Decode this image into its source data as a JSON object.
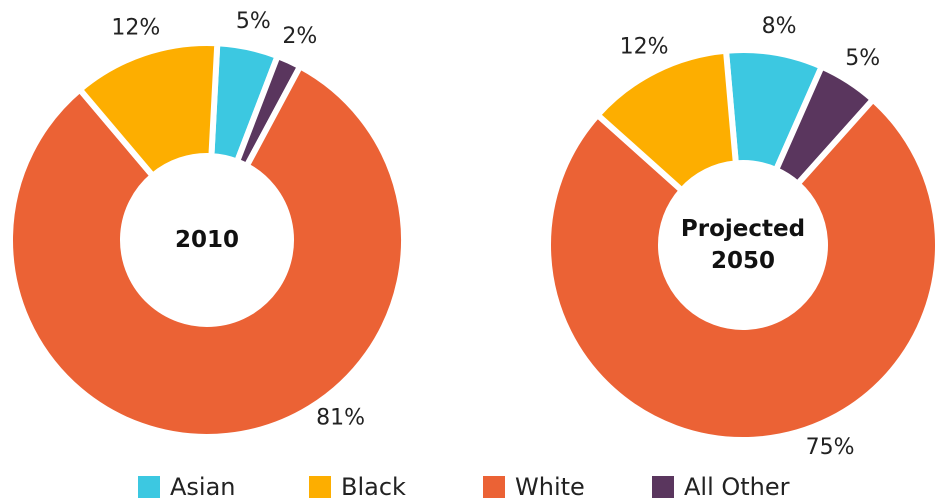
{
  "chart_data": [
    {
      "type": "pie",
      "donut": true,
      "title": "2010",
      "categories": [
        "Asian",
        "Black",
        "White",
        "All Other"
      ],
      "values": [
        5,
        12,
        81,
        2
      ],
      "value_labels": [
        "5%",
        "12%",
        "81%",
        "2%"
      ],
      "colors": [
        "#3cc8e1",
        "#fdae00",
        "#eb6235",
        "#5a365e"
      ]
    },
    {
      "type": "pie",
      "donut": true,
      "title": "Projected 2050",
      "categories": [
        "Asian",
        "Black",
        "White",
        "All Other"
      ],
      "values": [
        8,
        12,
        75,
        5
      ],
      "value_labels": [
        "8%",
        "12%",
        "75%",
        "5%"
      ],
      "colors": [
        "#3cc8e1",
        "#fdae00",
        "#eb6235",
        "#5a365e"
      ]
    }
  ]
}
